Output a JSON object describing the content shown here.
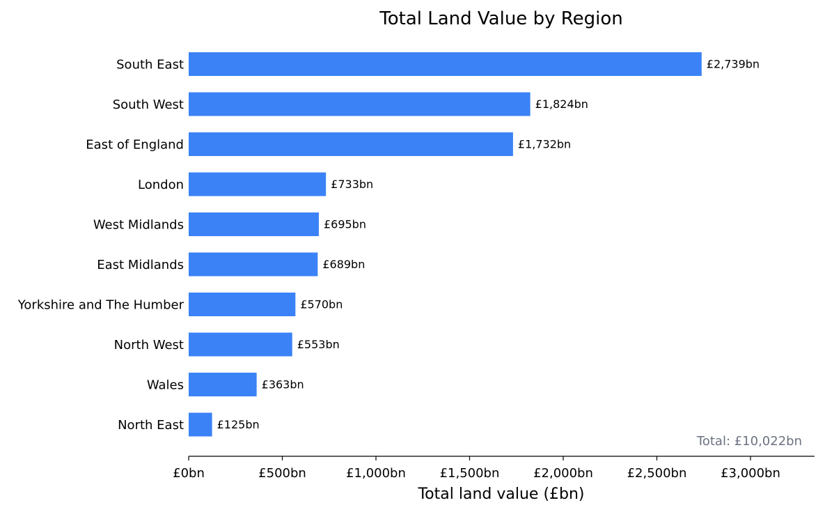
{
  "chart_data": {
    "type": "bar",
    "orientation": "horizontal",
    "title": "Total Land Value by Region",
    "xlabel": "Total land value (£bn)",
    "ylabel": "",
    "categories": [
      "South East",
      "South West",
      "East of England",
      "London",
      "West Midlands",
      "East Midlands",
      "Yorkshire and The Humber",
      "North West",
      "Wales",
      "North East"
    ],
    "values": [
      2739,
      1824,
      1732,
      733,
      695,
      689,
      570,
      553,
      363,
      125
    ],
    "data_labels": [
      "£2,739bn",
      "£1,824bn",
      "£1,732bn",
      "£733bn",
      "£695bn",
      "£689bn",
      "£570bn",
      "£553bn",
      "£363bn",
      "£125bn"
    ],
    "xlim": [
      0,
      3340
    ],
    "xticks": [
      0,
      500,
      1000,
      1500,
      2000,
      2500,
      3000
    ],
    "xtick_labels": [
      "£0bn",
      "£500bn",
      "£1,000bn",
      "£1,500bn",
      "£2,000bn",
      "£2,500bn",
      "£3,000bn"
    ],
    "annotation": "Total: £10,022bn",
    "grid": false,
    "colors": {
      "bar": "#3b82f6",
      "annotation": "#6b7280",
      "text": "#000000"
    }
  }
}
